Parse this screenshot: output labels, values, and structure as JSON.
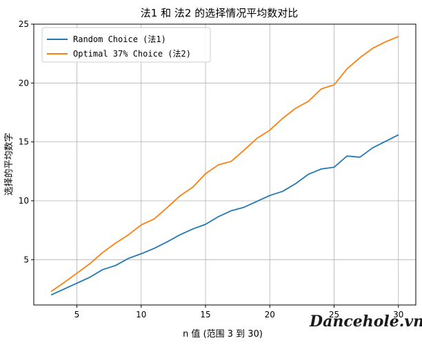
{
  "chart_data": {
    "type": "line",
    "title": "法1 和 法2 的选择情况平均数对比",
    "xlabel": "n 值 (范围 3 到 30)",
    "ylabel": "选择的平均数字",
    "xlim": [
      1.65,
      31.35
    ],
    "ylim": [
      1.15,
      25
    ],
    "xticks": [
      5,
      10,
      15,
      20,
      25,
      30
    ],
    "yticks": [
      5,
      10,
      15,
      20,
      25
    ],
    "grid": true,
    "legend_position": "top-left",
    "x": [
      3,
      4,
      5,
      6,
      7,
      8,
      9,
      10,
      11,
      12,
      13,
      14,
      15,
      16,
      17,
      18,
      19,
      20,
      21,
      22,
      23,
      24,
      25,
      26,
      27,
      28,
      29,
      30
    ],
    "series": [
      {
        "name": "Random Choice (法1)",
        "color": "#1f77b4",
        "values": [
          2.0,
          2.5,
          3.0,
          3.5,
          4.15,
          4.5,
          5.1,
          5.5,
          5.95,
          6.5,
          7.1,
          7.6,
          8.0,
          8.65,
          9.15,
          9.45,
          9.95,
          10.45,
          10.8,
          11.45,
          12.25,
          12.7,
          12.85,
          13.8,
          13.7,
          14.5,
          15.05,
          15.6
        ]
      },
      {
        "name": "Optimal 37% Choice (法2)",
        "color": "#ff7f0e",
        "values": [
          2.3,
          3.05,
          3.85,
          4.65,
          5.6,
          6.4,
          7.1,
          7.95,
          8.45,
          9.4,
          10.4,
          11.15,
          12.3,
          13.05,
          13.35,
          14.3,
          15.3,
          16.0,
          17.0,
          17.85,
          18.45,
          19.5,
          19.85,
          21.2,
          22.15,
          22.95,
          23.5,
          23.95
        ]
      }
    ]
  },
  "watermark": "Dancehole.vn"
}
